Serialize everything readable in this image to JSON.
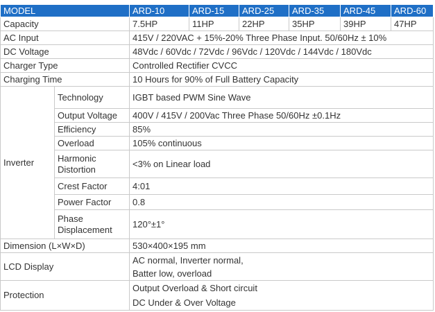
{
  "table": {
    "header": [
      "MODEL",
      "ARD-10",
      "ARD-15",
      "ARD-25",
      "ARD-35",
      "ARD-45",
      "ARD-60"
    ],
    "capacity": {
      "label": "Capacity",
      "values": [
        "7.5HP",
        "11HP",
        "22HP",
        "35HP",
        "39HP",
        "47HP"
      ]
    },
    "rows": [
      {
        "label": "AC Input",
        "value": "415V / 220VAC + 15%-20% Three Phase Input. 50/60Hz ± 10%"
      },
      {
        "label": "DC Voltage",
        "value": "48Vdc / 60Vdc / 72Vdc / 96Vdc / 120Vdc / 144Vdc / 180Vdc"
      },
      {
        "label": "Charger Type",
        "value": "Controlled Rectifier CVCC"
      },
      {
        "label": "Charging Time",
        "value": "10 Hours for 90% of Full Battery Capacity"
      }
    ],
    "inverter": {
      "label": "Inverter",
      "rows": [
        {
          "label": "Technology",
          "value": "IGBT based PWM Sine Wave"
        },
        {
          "label": "Output Voltage",
          "value": "400V / 415V / 200Vac Three Phase 50/60Hz ±0.1Hz"
        },
        {
          "label": "Efficiency",
          "value": "85%"
        },
        {
          "label": "Overload",
          "value": "105% continuous"
        },
        {
          "label": "Harmonic Distortion",
          "value": "<3% on Linear load"
        },
        {
          "label": "Crest Factor",
          "value": "4:01"
        },
        {
          "label": "Power Factor",
          "value": "0.8"
        },
        {
          "label": "Phase Displacement",
          "value": "120°±1°"
        }
      ]
    },
    "bottom_rows": [
      {
        "label": "Dimension (L×W×D)",
        "lines": [
          "530×400×195 mm"
        ]
      },
      {
        "label": "LCD Display",
        "lines": [
          "AC normal, Inverter normal,",
          "Batter low, overload"
        ]
      },
      {
        "label": "Protection",
        "lines": [
          "Output Overload & Short circuit",
          "DC Under & Over Voltage"
        ]
      }
    ]
  }
}
